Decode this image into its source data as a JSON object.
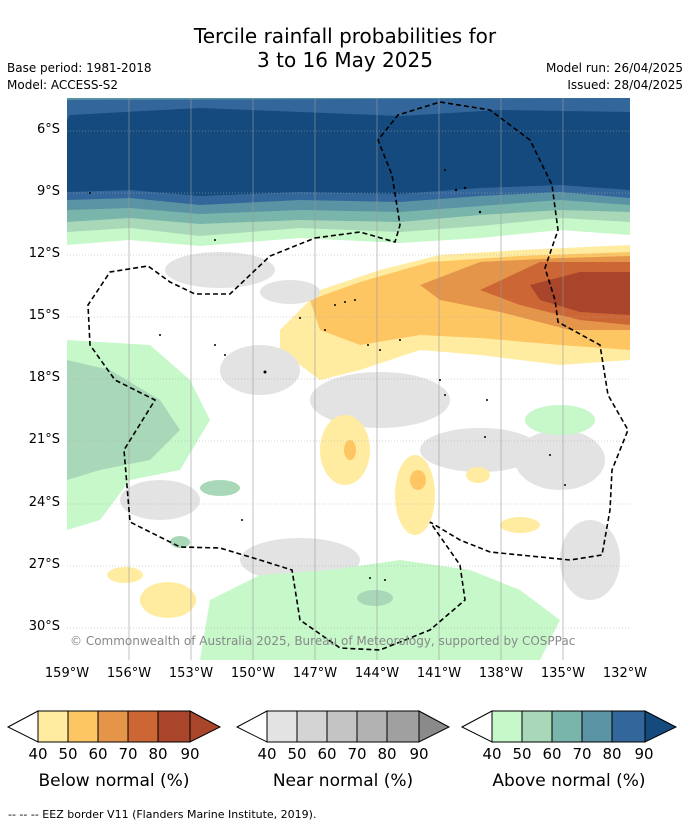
{
  "title_line1": "Tercile rainfall probabilities for",
  "title_line2": "3 to 16 May 2025",
  "meta": {
    "base_period": "Base period: 1981-2018",
    "model": "Model: ACCESS-S2",
    "model_run": "Model run: 26/04/2025",
    "issued": "Issued: 28/04/2025"
  },
  "lat_labels": [
    "6°S",
    "9°S",
    "12°S",
    "15°S",
    "18°S",
    "21°S",
    "24°S",
    "27°S",
    "30°S"
  ],
  "lon_labels": [
    "159°W",
    "156°W",
    "153°W",
    "150°W",
    "147°W",
    "144°W",
    "141°W",
    "138°W",
    "135°W",
    "132°W"
  ],
  "copyright": "© Commonwealth of Australia 2025, Bureau of Meteorology, supported by COSPPac",
  "colorbars": [
    {
      "title": "Below normal (%)",
      "ticks": [
        "40",
        "50",
        "60",
        "70",
        "80",
        "90"
      ],
      "colors": [
        "#ffeca0",
        "#fdc663",
        "#e5954a",
        "#cc6735",
        "#a8452a",
        "#a8452a"
      ]
    },
    {
      "title": "Near normal (%)",
      "ticks": [
        "40",
        "50",
        "60",
        "70",
        "80",
        "90"
      ],
      "colors": [
        "#e3e3e3",
        "#d4d4d4",
        "#c4c4c4",
        "#b2b2b2",
        "#a0a0a0",
        "#8a8a8a"
      ]
    },
    {
      "title": "Above normal (%)",
      "ticks": [
        "40",
        "50",
        "60",
        "70",
        "80",
        "90"
      ],
      "colors": [
        "#c6f8ca",
        "#a8d8b8",
        "#7ab5ac",
        "#5a93a4",
        "#33669a",
        "#154a7e"
      ]
    }
  ],
  "footnote": "--  --  -- EEZ border V11 (Flanders Marine Institute, 2019).",
  "colors": {
    "above_dark": "#154a7e",
    "above_mid": "#33669a",
    "above_light": "#c6f8ca",
    "below_dark": "#a8452a",
    "below_light": "#ffeca0",
    "near_light": "#e3e3e3"
  }
}
